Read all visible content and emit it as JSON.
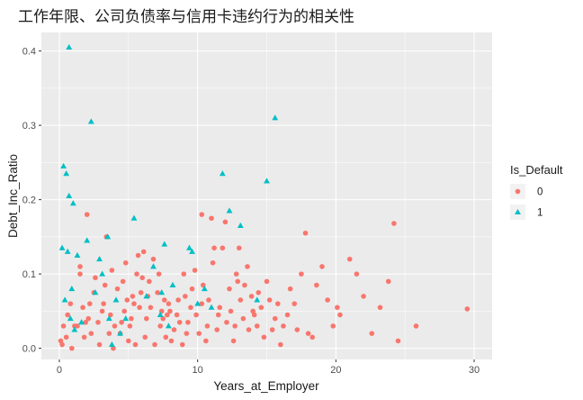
{
  "chart_data": {
    "type": "scatter",
    "title": "工作年限、公司负债率与信用卡违约行为的相关性",
    "xlabel": "Years_at_Employer",
    "ylabel": "Debt_Inc_Ratio",
    "xlim": [
      -1.3,
      31.3
    ],
    "ylim": [
      -0.015,
      0.425
    ],
    "x_ticks": [
      0,
      10,
      20,
      30
    ],
    "x_tick_labels": [
      "0",
      "10",
      "20",
      "30"
    ],
    "y_ticks": [
      0.0,
      0.1,
      0.2,
      0.3,
      0.4
    ],
    "y_tick_labels": [
      "0.0",
      "0.1",
      "0.2",
      "0.3",
      "0.4"
    ],
    "grid": true,
    "legend": {
      "title": "Is_Default",
      "position": "right"
    },
    "series": [
      {
        "name": "0",
        "color": "#F8766D",
        "marker": "circle",
        "points": [
          [
            0.1,
            0.01
          ],
          [
            0.2,
            0.005
          ],
          [
            0.3,
            0.03
          ],
          [
            0.5,
            0.015
          ],
          [
            0.6,
            0.045
          ],
          [
            0.8,
            0.06
          ],
          [
            0.9,
            0.0
          ],
          [
            1.1,
            0.03
          ],
          [
            1.3,
            0.03
          ],
          [
            1.5,
            0.1
          ],
          [
            1.5,
            0.11
          ],
          [
            1.7,
            0.055
          ],
          [
            1.8,
            0.015
          ],
          [
            1.9,
            0.035
          ],
          [
            2.0,
            0.18
          ],
          [
            2.1,
            0.04
          ],
          [
            2.2,
            0.06
          ],
          [
            2.3,
            0.02
          ],
          [
            2.5,
            0.075
          ],
          [
            2.6,
            0.095
          ],
          [
            2.8,
            0.035
          ],
          [
            2.9,
            0.005
          ],
          [
            3.1,
            0.05
          ],
          [
            3.2,
            0.06
          ],
          [
            3.3,
            0.085
          ],
          [
            3.4,
            0.15
          ],
          [
            3.6,
            0.02
          ],
          [
            3.7,
            0.045
          ],
          [
            3.8,
            0.105
          ],
          [
            3.9,
            0.0
          ],
          [
            4.0,
            0.03
          ],
          [
            4.2,
            0.08
          ],
          [
            4.4,
            0.02
          ],
          [
            4.5,
            0.035
          ],
          [
            4.6,
            0.09
          ],
          [
            4.7,
            0.05
          ],
          [
            4.8,
            0.115
          ],
          [
            4.9,
            0.065
          ],
          [
            5.0,
            0.01
          ],
          [
            5.1,
            0.03
          ],
          [
            5.2,
            0.04
          ],
          [
            5.3,
            0.07
          ],
          [
            5.5,
            0.005
          ],
          [
            5.6,
            0.1
          ],
          [
            5.7,
            0.125
          ],
          [
            5.8,
            0.055
          ],
          [
            5.9,
            0.075
          ],
          [
            6.0,
            0.095
          ],
          [
            6.1,
            0.13
          ],
          [
            6.2,
            0.015
          ],
          [
            6.3,
            0.04
          ],
          [
            6.4,
            0.07
          ],
          [
            6.5,
            0.09
          ],
          [
            6.6,
            0.055
          ],
          [
            6.8,
            0.12
          ],
          [
            6.9,
            0.005
          ],
          [
            7.1,
            0.075
          ],
          [
            7.2,
            0.1
          ],
          [
            7.3,
            0.03
          ],
          [
            7.4,
            0.05
          ],
          [
            7.5,
            0.04
          ],
          [
            7.6,
            0.065
          ],
          [
            7.7,
            0.015
          ],
          [
            7.8,
            0.045
          ],
          [
            7.9,
            0.06
          ],
          [
            8.0,
            0.05
          ],
          [
            8.1,
            0.01
          ],
          [
            8.3,
            0.025
          ],
          [
            8.5,
            0.045
          ],
          [
            8.7,
            0.035
          ],
          [
            8.9,
            0.005
          ],
          [
            9.0,
            0.1
          ],
          [
            9.1,
            0.07
          ],
          [
            9.2,
            0.02
          ],
          [
            9.3,
            0.035
          ],
          [
            9.5,
            0.055
          ],
          [
            9.6,
            0.08
          ],
          [
            9.8,
            0.105
          ],
          [
            9.9,
            0.045
          ],
          [
            10.1,
            0.02
          ],
          [
            10.3,
            0.06
          ],
          [
            10.4,
            0.085
          ],
          [
            10.6,
            0.01
          ],
          [
            10.7,
            0.03
          ],
          [
            10.8,
            0.065
          ],
          [
            11.0,
            0.175
          ],
          [
            11.1,
            0.115
          ],
          [
            11.2,
            0.135
          ],
          [
            11.4,
            0.025
          ],
          [
            11.5,
            0.045
          ],
          [
            11.6,
            0.055
          ],
          [
            11.8,
            0.135
          ],
          [
            12.0,
            0.17
          ],
          [
            12.1,
            0.035
          ],
          [
            12.3,
            0.08
          ],
          [
            12.4,
            0.05
          ],
          [
            12.6,
            0.01
          ],
          [
            12.7,
            0.03
          ],
          [
            12.8,
            0.1
          ],
          [
            13.0,
            0.135
          ],
          [
            13.1,
            0.065
          ],
          [
            13.3,
            0.04
          ],
          [
            13.4,
            0.085
          ],
          [
            13.6,
            0.11
          ],
          [
            13.7,
            0.025
          ],
          [
            13.9,
            0.07
          ],
          [
            14.1,
            0.045
          ],
          [
            14.3,
            0.03
          ],
          [
            14.4,
            0.075
          ],
          [
            14.6,
            0.055
          ],
          [
            14.8,
            0.015
          ],
          [
            15.0,
            0.09
          ],
          [
            15.2,
            0.065
          ],
          [
            15.4,
            0.025
          ],
          [
            15.6,
            0.04
          ],
          [
            15.8,
            0.06
          ],
          [
            16.0,
            0.005
          ],
          [
            16.2,
            0.03
          ],
          [
            16.5,
            0.045
          ],
          [
            16.7,
            0.08
          ],
          [
            17.0,
            0.06
          ],
          [
            17.2,
            0.025
          ],
          [
            17.5,
            0.1
          ],
          [
            17.8,
            0.155
          ],
          [
            18.0,
            0.02
          ],
          [
            18.3,
            0.015
          ],
          [
            18.6,
            0.085
          ],
          [
            19.0,
            0.11
          ],
          [
            19.4,
            0.065
          ],
          [
            19.8,
            0.03
          ],
          [
            20.1,
            0.055
          ],
          [
            20.3,
            0.045
          ],
          [
            21.0,
            0.12
          ],
          [
            21.5,
            0.1
          ],
          [
            22.0,
            0.07
          ],
          [
            22.6,
            0.02
          ],
          [
            23.2,
            0.055
          ],
          [
            23.8,
            0.09
          ],
          [
            24.2,
            0.168
          ],
          [
            24.5,
            0.01
          ],
          [
            25.8,
            0.03
          ],
          [
            29.5,
            0.053
          ],
          [
            10.3,
            0.18
          ],
          [
            12.9,
            0.09
          ],
          [
            14.0,
            0.05
          ],
          [
            8.6,
            0.065
          ],
          [
            5.4,
            0.06
          ]
        ]
      },
      {
        "name": "1",
        "color": "#00BFC4",
        "marker": "triangle",
        "points": [
          [
            0.2,
            0.135
          ],
          [
            0.3,
            0.245
          ],
          [
            0.4,
            0.065
          ],
          [
            0.5,
            0.235
          ],
          [
            0.6,
            0.13
          ],
          [
            0.7,
            0.405
          ],
          [
            0.7,
            0.205
          ],
          [
            0.8,
            0.04
          ],
          [
            0.9,
            0.08
          ],
          [
            1.0,
            0.195
          ],
          [
            1.1,
            0.025
          ],
          [
            1.3,
            0.125
          ],
          [
            1.6,
            0.035
          ],
          [
            2.0,
            0.145
          ],
          [
            2.3,
            0.305
          ],
          [
            2.6,
            0.075
          ],
          [
            2.9,
            0.12
          ],
          [
            3.1,
            0.1
          ],
          [
            3.5,
            0.15
          ],
          [
            3.6,
            0.04
          ],
          [
            3.8,
            0.005
          ],
          [
            4.1,
            0.065
          ],
          [
            4.4,
            0.02
          ],
          [
            4.8,
            0.04
          ],
          [
            5.4,
            0.175
          ],
          [
            6.3,
            0.07
          ],
          [
            6.8,
            0.11
          ],
          [
            7.3,
            0.045
          ],
          [
            7.6,
            0.14
          ],
          [
            7.4,
            0.075
          ],
          [
            7.9,
            0.03
          ],
          [
            8.2,
            0.085
          ],
          [
            9.4,
            0.135
          ],
          [
            9.6,
            0.13
          ],
          [
            10.0,
            0.06
          ],
          [
            10.5,
            0.08
          ],
          [
            11.0,
            0.055
          ],
          [
            11.8,
            0.235
          ],
          [
            12.3,
            0.185
          ],
          [
            13.1,
            0.165
          ],
          [
            15.0,
            0.225
          ],
          [
            15.6,
            0.31
          ],
          [
            14.3,
            0.065
          ]
        ]
      }
    ]
  }
}
